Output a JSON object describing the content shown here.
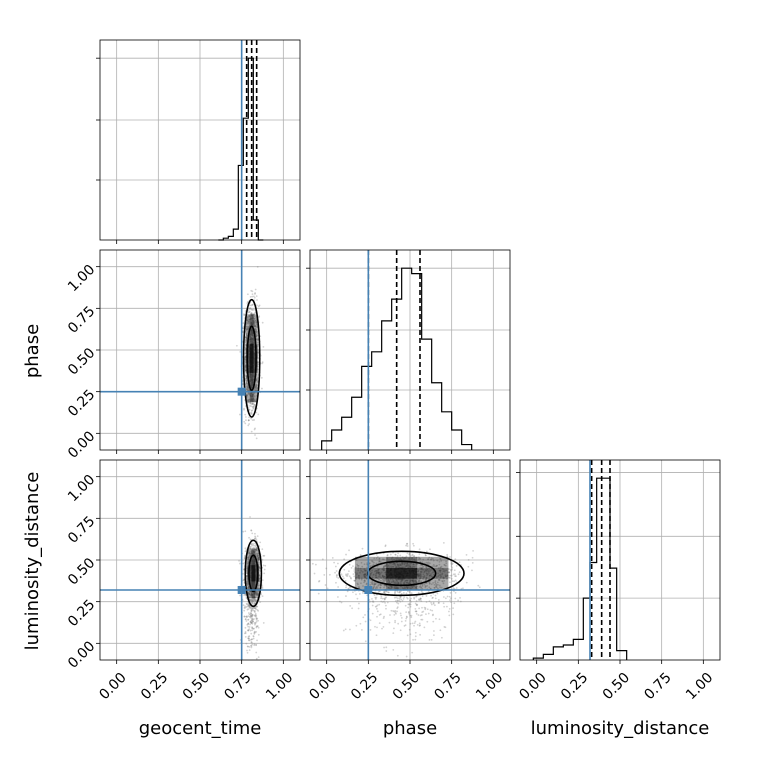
{
  "chart_data": {
    "type": "corner",
    "parameters": [
      "geocent_time",
      "phase",
      "luminosity_distance"
    ],
    "axis_range": [
      -0.1,
      1.1
    ],
    "ticks": [
      0.0,
      0.25,
      0.5,
      0.75,
      1.0
    ],
    "tick_labels": [
      "0.00",
      "0.25",
      "0.50",
      "0.75",
      "1.00"
    ],
    "grid": true,
    "colors": {
      "hist": "#000000",
      "truth": "#4682b4",
      "grid": "#b0b0b0",
      "samples": "#808080"
    },
    "truths": {
      "geocent_time": 0.75,
      "phase": 0.25,
      "luminosity_distance": 0.32
    },
    "quantiles": {
      "geocent_time": [
        0.78,
        0.81,
        0.84
      ],
      "phase": [
        0.25,
        0.42,
        0.56
      ],
      "luminosity_distance": [
        0.33,
        0.39,
        0.44
      ]
    },
    "histograms": {
      "geocent_time": {
        "edges": [
          0.61,
          0.64,
          0.67,
          0.7,
          0.73,
          0.76,
          0.79,
          0.82,
          0.85,
          0.88
        ],
        "counts": [
          0,
          1,
          2,
          6,
          41,
          67,
          100,
          11,
          0
        ]
      },
      "phase": {
        "edges": [
          -0.03,
          0.03,
          0.09,
          0.15,
          0.21,
          0.27,
          0.33,
          0.39,
          0.45,
          0.51,
          0.57,
          0.63,
          0.69,
          0.75,
          0.81,
          0.87
        ],
        "counts": [
          5,
          11,
          18,
          29,
          46,
          54,
          71,
          83,
          100,
          97,
          61,
          37,
          21,
          11,
          3
        ]
      },
      "luminosity_distance": {
        "edges": [
          -0.02,
          0.04,
          0.1,
          0.16,
          0.22,
          0.28,
          0.32,
          0.36,
          0.4,
          0.44,
          0.48,
          0.54
        ],
        "counts": [
          1,
          3,
          7,
          8,
          11,
          33,
          52,
          97,
          97,
          49,
          5
        ]
      }
    },
    "posterior_centers": {
      "phase_vs_geocent_time": {
        "x": 0.81,
        "y": 0.45
      },
      "luminosity_distance_vs_geocent_time": {
        "x": 0.82,
        "y": 0.42
      },
      "luminosity_distance_vs_phase": {
        "x": 0.45,
        "y": 0.42
      }
    }
  }
}
